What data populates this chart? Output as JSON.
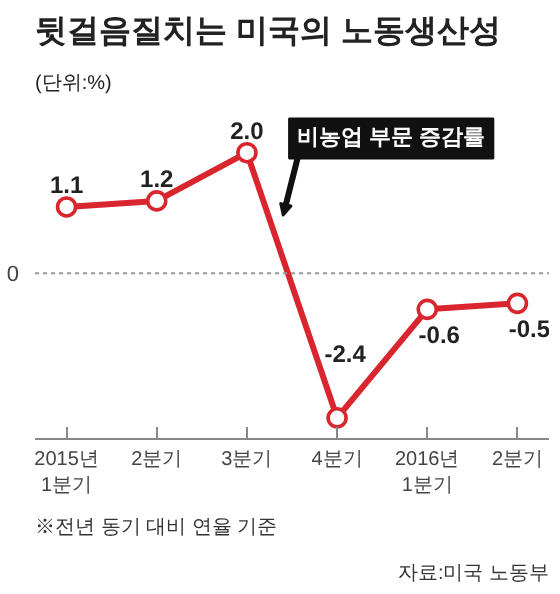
{
  "chart_data": {
    "type": "line",
    "title": "뒷걸음질치는 미국의 노동생산성",
    "subtitle": "(단위:%)",
    "categories": [
      "2015년\n1분기",
      "2분기",
      "3분기",
      "4분기",
      "2016년\n1분기",
      "2분기"
    ],
    "series": [
      {
        "name": "비농업 부문 증감률",
        "color": "#d9262e",
        "values": [
          1.1,
          1.2,
          2.0,
          -2.4,
          -0.6,
          -0.5
        ],
        "value_labels": [
          "1.1",
          "1.2",
          "2.0",
          "-2.4",
          "-0.6",
          "-0.5"
        ]
      }
    ],
    "ref_lines": [
      {
        "axis": "y",
        "value": 0,
        "label": "0",
        "line_style": "dashed",
        "color": "#999999"
      }
    ],
    "marker": "circle",
    "line_style": "solid",
    "annotations": [
      "※전년 동기 대비 연율 기준",
      "자료:미국 노동부"
    ]
  }
}
